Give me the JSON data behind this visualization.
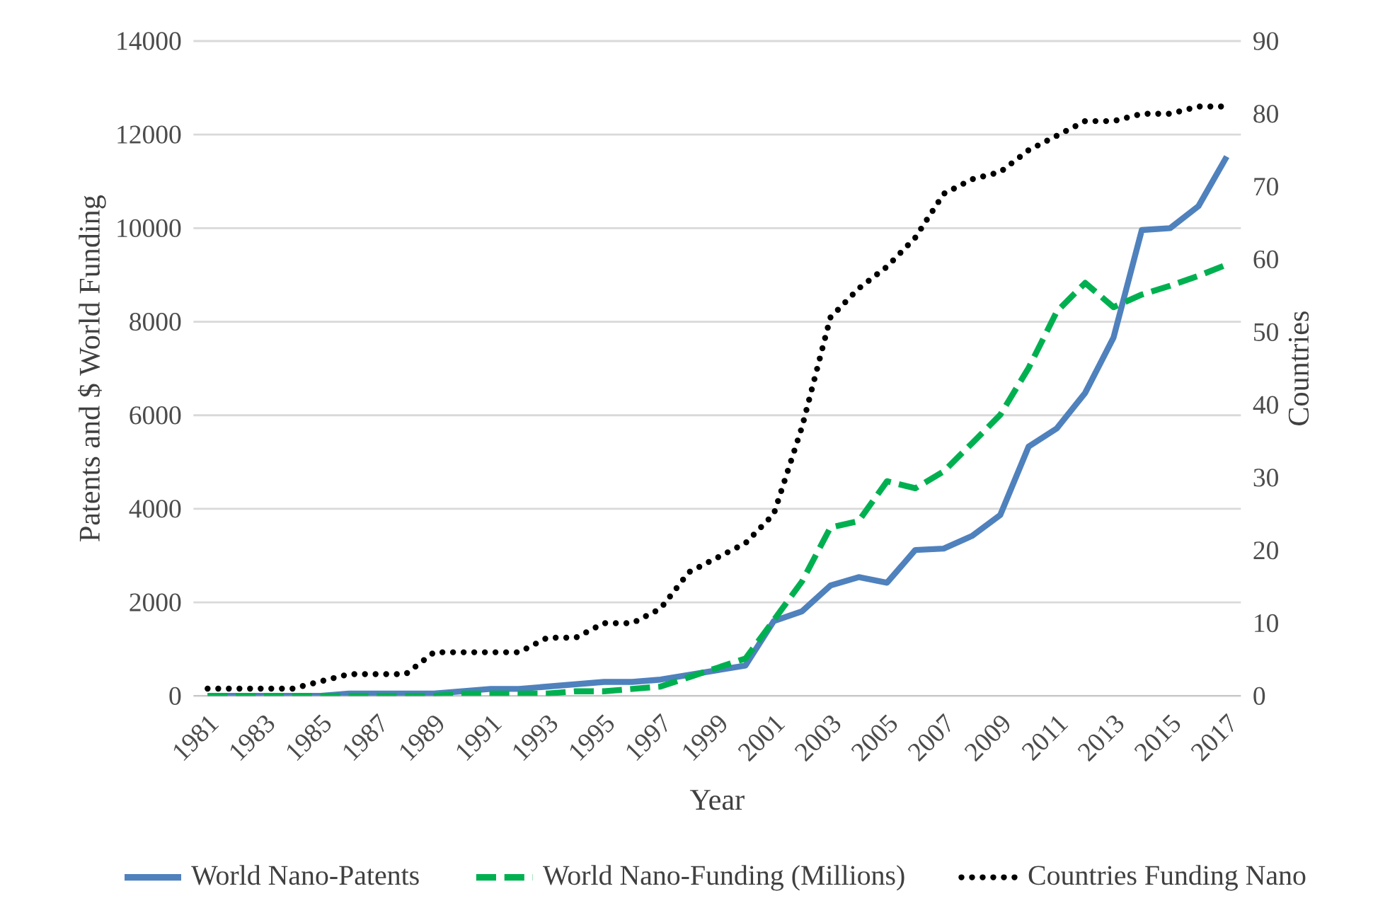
{
  "chart_data": {
    "type": "line",
    "xlabel": "Year",
    "ylabel": "Patents and $ World Funding",
    "y2label": "Countries",
    "categories": [
      "1981",
      null,
      "1983",
      null,
      "1985",
      null,
      "1987",
      null,
      "1989",
      null,
      "1991",
      null,
      "1993",
      null,
      "1995",
      null,
      "1997",
      null,
      "1999",
      null,
      "2001",
      null,
      "2003",
      null,
      "2005",
      null,
      "2007",
      null,
      "2009",
      null,
      "2011",
      null,
      "2013",
      null,
      "2015",
      null,
      "2017"
    ],
    "series": [
      {
        "name": "World Nano-Patents",
        "color": "#4f81bd",
        "line_style": "solid",
        "values": [
          0,
          0,
          0,
          0,
          0,
          50,
          50,
          50,
          50,
          100,
          150,
          150,
          200,
          250,
          300,
          300,
          350,
          450,
          550,
          650,
          1600,
          1810,
          2360,
          2540,
          2420,
          3120,
          3150,
          3420,
          3870,
          5330,
          5720,
          6480,
          7660,
          9960,
          10000,
          10470,
          11530
        ]
      },
      {
        "name": "World Nano-Funding (Millions)",
        "color": "#00b050",
        "line_style": "dashed",
        "values": [
          0,
          0,
          0,
          0,
          0,
          0,
          0,
          0,
          0,
          50,
          50,
          50,
          50,
          100,
          100,
          150,
          200,
          400,
          600,
          800,
          1620,
          2450,
          3600,
          3740,
          4590,
          4440,
          4800,
          5400,
          6010,
          7010,
          8220,
          8830,
          8310,
          8580,
          8770,
          8980,
          9220
        ]
      },
      {
        "name": "Countries Funding Nano",
        "color": "#000000",
        "line_style": "dotted",
        "axis": "y2",
        "values": [
          1,
          1,
          1,
          1,
          2,
          3,
          3,
          3,
          6,
          6,
          6,
          6,
          8,
          8,
          10,
          10,
          12,
          17,
          19,
          21,
          25,
          37,
          52,
          56,
          59,
          63,
          69,
          71,
          72,
          75,
          77,
          79,
          79,
          80,
          80,
          81,
          81
        ]
      }
    ],
    "ylim": [
      0,
      14000
    ],
    "yticks": [
      0,
      2000,
      4000,
      6000,
      8000,
      10000,
      12000,
      14000
    ],
    "y2lim": [
      0,
      90
    ],
    "y2ticks": [
      0,
      10,
      20,
      30,
      40,
      50,
      60,
      70,
      80,
      90
    ],
    "grid": "y",
    "legend": "bottom",
    "marker": "none"
  }
}
